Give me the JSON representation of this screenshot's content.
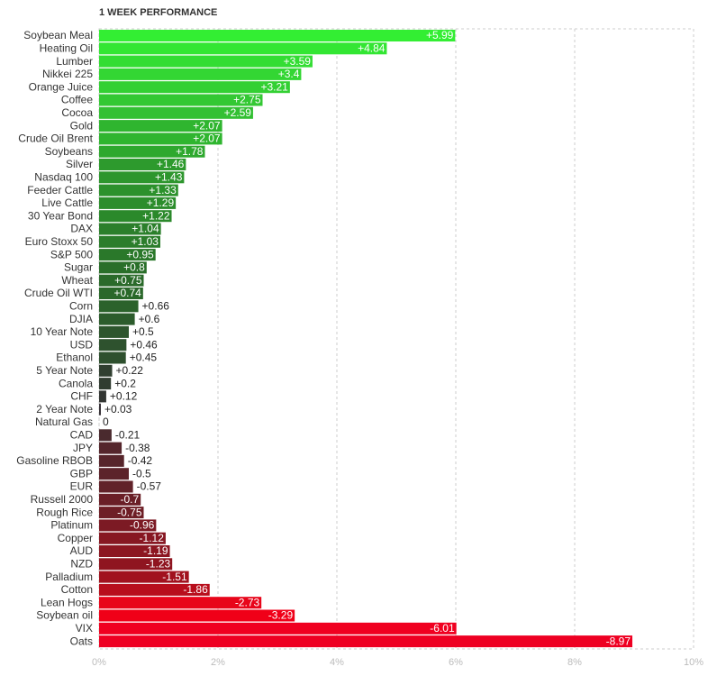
{
  "chart_data": {
    "type": "bar",
    "orientation": "horizontal",
    "title": "1 WEEK PERFORMANCE",
    "categories": [
      "Soybean Meal",
      "Heating Oil",
      "Lumber",
      "Nikkei 225",
      "Orange Juice",
      "Coffee",
      "Cocoa",
      "Gold",
      "Crude Oil Brent",
      "Soybeans",
      "Silver",
      "Nasdaq 100",
      "Feeder Cattle",
      "Live Cattle",
      "30 Year Bond",
      "DAX",
      "Euro Stoxx 50",
      "S&P 500",
      "Sugar",
      "Wheat",
      "Crude Oil WTI",
      "Corn",
      "DJIA",
      "10 Year Note",
      "USD",
      "Ethanol",
      "5 Year Note",
      "Canola",
      "CHF",
      "2 Year Note",
      "Natural Gas",
      "CAD",
      "JPY",
      "Gasoline RBOB",
      "GBP",
      "EUR",
      "Russell 2000",
      "Rough Rice",
      "Platinum",
      "Copper",
      "AUD",
      "NZD",
      "Palladium",
      "Cotton",
      "Lean Hogs",
      "Soybean oil",
      "VIX",
      "Oats"
    ],
    "values": [
      5.99,
      4.84,
      3.59,
      3.4,
      3.21,
      2.75,
      2.59,
      2.07,
      2.07,
      1.78,
      1.46,
      1.43,
      1.33,
      1.29,
      1.22,
      1.04,
      1.03,
      0.95,
      0.8,
      0.75,
      0.74,
      0.66,
      0.6,
      0.5,
      0.46,
      0.45,
      0.22,
      0.2,
      0.12,
      0.03,
      0,
      -0.21,
      -0.38,
      -0.42,
      -0.5,
      -0.57,
      -0.7,
      -0.75,
      -0.96,
      -1.12,
      -1.19,
      -1.23,
      -1.51,
      -1.86,
      -2.73,
      -3.29,
      -6.01,
      -8.97
    ],
    "value_labels": [
      "+5.99",
      "+4.84",
      "+3.59",
      "+3.4",
      "+3.21",
      "+2.75",
      "+2.59",
      "+2.07",
      "+2.07",
      "+1.78",
      "+1.46",
      "+1.43",
      "+1.33",
      "+1.29",
      "+1.22",
      "+1.04",
      "+1.03",
      "+0.95",
      "+0.8",
      "+0.75",
      "+0.74",
      "+0.66",
      "+0.6",
      "+0.5",
      "+0.46",
      "+0.45",
      "+0.22",
      "+0.2",
      "+0.12",
      "+0.03",
      "0",
      "-0.21",
      "-0.38",
      "-0.42",
      "-0.5",
      "-0.57",
      "-0.7",
      "-0.75",
      "-0.96",
      "-1.12",
      "-1.19",
      "-1.23",
      "-1.51",
      "-1.86",
      "-2.73",
      "-3.29",
      "-6.01",
      "-8.97"
    ],
    "colors": [
      "#33ee33",
      "#33e633",
      "#33dd33",
      "#33d633",
      "#33d033",
      "#33c833",
      "#33c033",
      "#2fb52f",
      "#2fb52f",
      "#2ea82e",
      "#2d9a2d",
      "#2d962d",
      "#2c912c",
      "#2c8d2c",
      "#2b892b",
      "#2b7f2b",
      "#2b7d2b",
      "#2a782a",
      "#2a6f2a",
      "#2a6a2a",
      "#2a682a",
      "#2b622b",
      "#2c5c2c",
      "#2d552d",
      "#2e522e",
      "#2e502e",
      "#303f30",
      "#313d31",
      "#333633",
      "#363036",
      "#333333",
      "#4a2a2e",
      "#55262c",
      "#57252b",
      "#5c232a",
      "#612229",
      "#6a1f27",
      "#6e1e26",
      "#7c1a24",
      "#871722",
      "#8c1621",
      "#8f1520",
      "#a1121e",
      "#b80e1c",
      "#e8051a",
      "#f00018",
      "#f00020",
      "#ee0022"
    ],
    "xlim": [
      0,
      10
    ],
    "xticks": [
      {
        "value": 0,
        "label": "0%"
      },
      {
        "value": 2,
        "label": "2%"
      },
      {
        "value": 4,
        "label": "4%"
      },
      {
        "value": 6,
        "label": "6%"
      },
      {
        "value": 8,
        "label": "8%"
      },
      {
        "value": 10,
        "label": "10%"
      }
    ],
    "grid": true
  }
}
